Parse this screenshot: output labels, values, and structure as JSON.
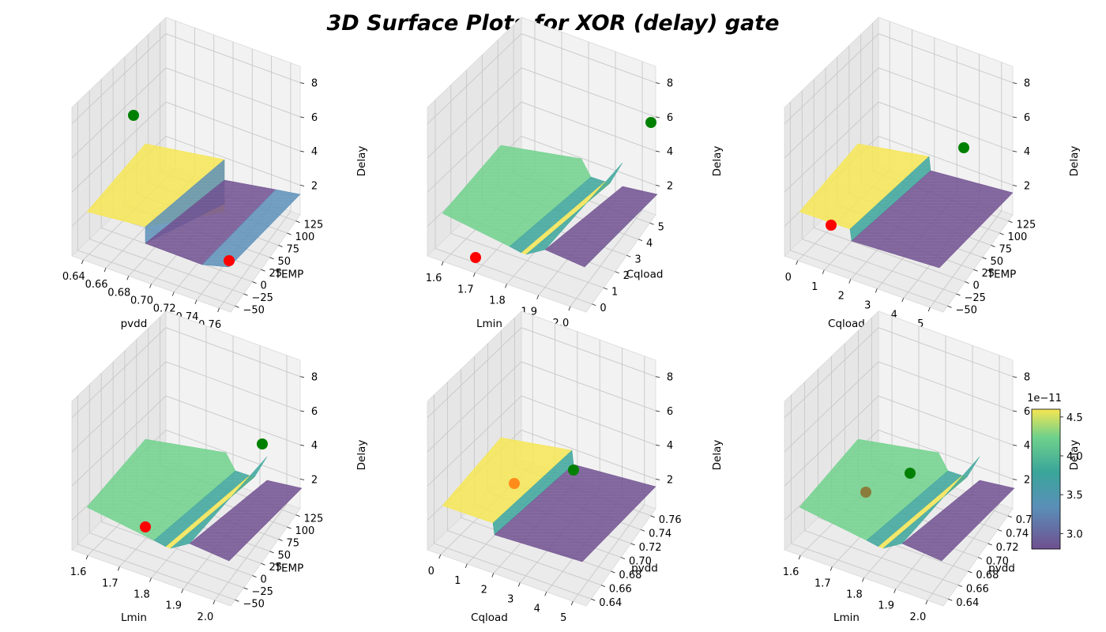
{
  "figure": {
    "title": "3D Surface Plots for XOR (delay) gate"
  },
  "colors": {
    "yellow": "#f6e652",
    "green": "#6fd18b",
    "teal": "#3aa59a",
    "blue": "#5a8fb8",
    "purple": "#6f4f8f",
    "marker_red": "#ff0000",
    "marker_green": "#008000",
    "marker_orange": "#ff8c1a",
    "marker_olive": "#8a7d3c"
  },
  "chart_data": [
    {
      "type": "surface3d",
      "xlabel": "pvdd",
      "ylabel": "TEMP",
      "zlabel": "Delay",
      "xticks": [
        "0.64",
        "0.66",
        "0.68",
        "0.70",
        "0.72",
        "0.74",
        "0.76"
      ],
      "yticks": [
        "−50",
        "−25",
        "0",
        "25",
        "50",
        "75",
        "100",
        "125"
      ],
      "zticks": [
        "2",
        "4",
        "6",
        "8"
      ],
      "markers": [
        {
          "color": "marker_green",
          "z": 9.2
        },
        {
          "color": "marker_red",
          "z": 1.0
        }
      ]
    },
    {
      "type": "surface3d",
      "xlabel": "Lmin",
      "ylabel": "Cqload",
      "zlabel": "Delay",
      "xticks": [
        "1.6",
        "1.7",
        "1.8",
        "1.9",
        "2.0"
      ],
      "yticks": [
        "0",
        "1",
        "2",
        "3",
        "4",
        "5"
      ],
      "zticks": [
        "2",
        "4",
        "6",
        "8"
      ],
      "markers": [
        {
          "color": "marker_green",
          "z": 9.0
        },
        {
          "color": "marker_red",
          "z": 1.0
        }
      ]
    },
    {
      "type": "surface3d",
      "xlabel": "Cqload",
      "ylabel": "TEMP",
      "zlabel": "Delay",
      "xticks": [
        "0",
        "1",
        "2",
        "3",
        "4",
        "5"
      ],
      "yticks": [
        "−50",
        "−25",
        "0",
        "25",
        "50",
        "75",
        "100",
        "125"
      ],
      "zticks": [
        "2",
        "4",
        "6",
        "8"
      ],
      "markers": [
        {
          "color": "marker_green",
          "z": 7.0
        },
        {
          "color": "marker_red",
          "z": 2.0
        }
      ]
    },
    {
      "type": "surface3d",
      "xlabel": "Lmin",
      "ylabel": "TEMP",
      "zlabel": "Delay",
      "xticks": [
        "1.6",
        "1.7",
        "1.8",
        "1.9",
        "2.0"
      ],
      "yticks": [
        "−50",
        "−25",
        "0",
        "25",
        "50",
        "75",
        "100",
        "125"
      ],
      "zticks": [
        "2",
        "4",
        "6",
        "8"
      ],
      "markers": [
        {
          "color": "marker_green",
          "z": 6.5
        },
        {
          "color": "marker_red",
          "z": 1.3
        }
      ]
    },
    {
      "type": "surface3d",
      "xlabel": "Cqload",
      "ylabel": "pvdd",
      "zlabel": "Delay",
      "xticks": [
        "0",
        "1",
        "2",
        "3",
        "4",
        "5"
      ],
      "yticks": [
        "0.64",
        "0.66",
        "0.68",
        "0.70",
        "0.72",
        "0.74",
        "0.76"
      ],
      "zticks": [
        "2",
        "4",
        "6",
        "8"
      ],
      "markers": [
        {
          "color": "marker_green",
          "z": 4.5
        },
        {
          "color": "marker_orange",
          "z": 3.5
        }
      ]
    },
    {
      "type": "surface3d",
      "xlabel": "Lmin",
      "ylabel": "pvdd",
      "zlabel": "Delay",
      "xticks": [
        "1.6",
        "1.7",
        "1.8",
        "1.9",
        "2.0"
      ],
      "yticks": [
        "0.64",
        "0.66",
        "0.68",
        "0.70",
        "0.72",
        "0.74",
        "0.76"
      ],
      "zticks": [
        "2",
        "4",
        "6",
        "8"
      ],
      "markers": [
        {
          "color": "marker_green",
          "z": 4.5
        },
        {
          "color": "marker_olive",
          "z": 3.0
        }
      ]
    }
  ],
  "colorbar": {
    "exponent": "1e−11",
    "ticks": [
      "3.0",
      "3.5",
      "4.0",
      "4.5"
    ],
    "range": [
      2.8,
      4.6
    ]
  }
}
